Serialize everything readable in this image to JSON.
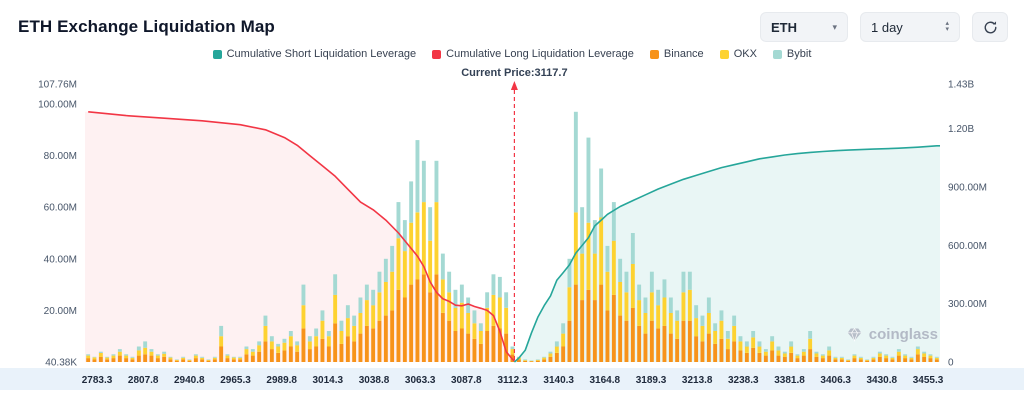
{
  "header": {
    "title": "ETH Exchange Liquidation Map",
    "controls": {
      "symbol": {
        "value": "ETH"
      },
      "interval": {
        "value": "1 day"
      }
    }
  },
  "legend": {
    "items": [
      {
        "label": "Cumulative Short Liquidation Leverage",
        "color": "#26a69a"
      },
      {
        "label": "Cumulative Long Liquidation Leverage",
        "color": "#f23645"
      },
      {
        "label": "Binance",
        "color": "#f7931a"
      },
      {
        "label": "OKX",
        "color": "#fdd231"
      },
      {
        "label": "Bybit",
        "color": "#a4d9d3"
      }
    ]
  },
  "watermark": {
    "text": "coinglass"
  },
  "chart_data": {
    "type": "bar",
    "subtype": "stacked liquidation bars + cumulative long/short leverage lines",
    "title": "ETH Exchange Liquidation Map",
    "current_price": {
      "label": "Current Price:3117.7",
      "value": 3117.7,
      "bar_index": 67.3
    },
    "x_tick_labels": [
      "2783.3",
      "2807.8",
      "2940.8",
      "2965.3",
      "2989.8",
      "3014.3",
      "3038.8",
      "3063.3",
      "3087.8",
      "3112.3",
      "3140.3",
      "3164.8",
      "3189.3",
      "3213.8",
      "3238.3",
      "3381.8",
      "3406.3",
      "3430.8",
      "3455.3"
    ],
    "left_axis": {
      "max_m": 107.76,
      "ticks": [
        {
          "label": "107.76M",
          "value_m": 107.76
        },
        {
          "label": "100.00M",
          "value_m": 100
        },
        {
          "label": "80.00M",
          "value_m": 80
        },
        {
          "label": "60.00M",
          "value_m": 60
        },
        {
          "label": "40.00M",
          "value_m": 40
        },
        {
          "label": "20.00M",
          "value_m": 20
        },
        {
          "label": "40.38K",
          "value_m": 0.04038
        }
      ]
    },
    "right_axis": {
      "max_m": 1430,
      "ticks": [
        {
          "label": "1.43B",
          "value_m": 1430
        },
        {
          "label": "1.20B",
          "value_m": 1200
        },
        {
          "label": "900.00M",
          "value_m": 900
        },
        {
          "label": "600.00M",
          "value_m": 600
        },
        {
          "label": "300.00M",
          "value_m": 300
        },
        {
          "label": "0",
          "value_m": 0
        }
      ]
    },
    "stack_series": [
      "Binance",
      "OKX",
      "Bybit"
    ],
    "bars_m": [
      [
        1.5,
        1,
        0.5
      ],
      [
        1,
        0.8,
        0.2
      ],
      [
        2,
        1.5,
        0.5
      ],
      [
        1,
        0.7,
        0.3
      ],
      [
        1.5,
        1,
        0.5
      ],
      [
        2.5,
        1.5,
        1
      ],
      [
        1.5,
        1,
        0.5
      ],
      [
        1,
        0.6,
        0.4
      ],
      [
        2.5,
        2,
        1.5
      ],
      [
        3,
        2.5,
        2.5
      ],
      [
        2.5,
        1.5,
        1
      ],
      [
        1.5,
        1,
        0.5
      ],
      [
        2,
        1.2,
        0.8
      ],
      [
        1,
        0.7,
        0.3
      ],
      [
        0.5,
        0.3,
        0.2
      ],
      [
        1,
        0.6,
        0.4
      ],
      [
        0.5,
        0.3,
        0.2
      ],
      [
        1.5,
        1,
        0.5
      ],
      [
        1,
        0.6,
        0.4
      ],
      [
        0.5,
        0.3,
        0.2
      ],
      [
        1,
        0.6,
        0.4
      ],
      [
        6,
        4,
        4
      ],
      [
        1.5,
        1,
        0.5
      ],
      [
        1,
        0.7,
        0.3
      ],
      [
        1,
        0.6,
        0.4
      ],
      [
        3,
        2,
        1
      ],
      [
        2.5,
        1.5,
        1
      ],
      [
        4,
        2.5,
        1.5
      ],
      [
        8,
        6,
        4
      ],
      [
        5,
        3,
        2
      ],
      [
        3.5,
        2.5,
        1
      ],
      [
        4.5,
        3,
        1.5
      ],
      [
        6,
        4,
        2
      ],
      [
        4,
        2.5,
        1.5
      ],
      [
        13,
        9,
        8
      ],
      [
        5,
        3,
        2
      ],
      [
        6,
        4,
        3
      ],
      [
        9,
        7,
        4
      ],
      [
        6,
        4,
        2
      ],
      [
        15,
        11,
        8
      ],
      [
        7,
        5,
        4
      ],
      [
        10,
        7,
        5
      ],
      [
        8,
        6,
        4
      ],
      [
        11,
        8,
        6
      ],
      [
        14,
        10,
        6
      ],
      [
        13,
        9,
        6
      ],
      [
        16,
        11,
        8
      ],
      [
        18,
        13,
        9
      ],
      [
        20,
        15,
        10
      ],
      [
        28,
        20,
        14
      ],
      [
        25,
        18,
        12
      ],
      [
        30,
        24,
        16
      ],
      [
        32,
        26,
        28
      ],
      [
        34,
        28,
        16
      ],
      [
        27,
        20,
        13
      ],
      [
        34,
        28,
        16
      ],
      [
        19,
        13,
        10
      ],
      [
        16,
        11,
        8
      ],
      [
        12,
        9,
        7
      ],
      [
        13,
        10,
        7
      ],
      [
        11,
        8,
        6
      ],
      [
        9,
        6,
        5
      ],
      [
        7,
        5,
        3
      ],
      [
        12,
        9,
        6
      ],
      [
        14,
        12,
        8
      ],
      [
        13,
        12,
        8
      ],
      [
        11,
        10,
        6
      ],
      [
        3,
        2,
        1
      ],
      [
        1,
        0.7,
        0.3
      ],
      [
        0.4,
        0.3,
        0.3
      ],
      [
        0.3,
        0.2,
        0.1
      ],
      [
        0.5,
        0.3,
        0.2
      ],
      [
        1,
        0.7,
        0.3
      ],
      [
        2,
        1.3,
        0.7
      ],
      [
        3.5,
        2.5,
        2
      ],
      [
        6,
        5,
        4
      ],
      [
        16,
        13,
        11
      ],
      [
        30,
        28,
        39
      ],
      [
        24,
        18,
        18
      ],
      [
        28,
        26,
        33
      ],
      [
        24,
        18,
        13
      ],
      [
        30,
        26,
        19
      ],
      [
        20,
        15,
        10
      ],
      [
        26,
        21,
        15
      ],
      [
        18,
        13,
        9
      ],
      [
        16,
        11,
        8
      ],
      [
        21,
        17,
        12
      ],
      [
        14,
        10,
        6
      ],
      [
        11,
        8,
        6
      ],
      [
        16,
        11,
        8
      ],
      [
        13,
        9,
        6
      ],
      [
        14,
        11,
        7
      ],
      [
        11,
        8,
        6
      ],
      [
        9,
        7,
        4
      ],
      [
        16,
        11,
        8
      ],
      [
        16,
        12,
        7
      ],
      [
        10,
        7,
        5
      ],
      [
        8,
        6,
        4
      ],
      [
        11,
        8,
        6
      ],
      [
        7,
        5,
        3
      ],
      [
        9,
        7,
        4
      ],
      [
        5,
        4,
        3
      ],
      [
        8,
        6,
        4
      ],
      [
        4.5,
        3.5,
        2
      ],
      [
        3.5,
        2.5,
        2
      ],
      [
        5.5,
        4,
        2.5
      ],
      [
        3.5,
        2.5,
        2
      ],
      [
        2.5,
        1.5,
        1
      ],
      [
        4.5,
        3.5,
        2
      ],
      [
        2.5,
        2,
        1.5
      ],
      [
        2,
        1.3,
        0.7
      ],
      [
        3.5,
        2.5,
        2
      ],
      [
        1.5,
        1,
        0.5
      ],
      [
        2.5,
        1.5,
        1
      ],
      [
        5,
        4,
        3
      ],
      [
        2,
        1.3,
        0.7
      ],
      [
        1.5,
        1,
        0.5
      ],
      [
        2.5,
        2,
        1.5
      ],
      [
        1,
        0.6,
        0.4
      ],
      [
        1,
        0.6,
        0.4
      ],
      [
        0.5,
        0.3,
        0.2
      ],
      [
        1.5,
        1,
        0.5
      ],
      [
        1,
        0.6,
        0.4
      ],
      [
        0.5,
        0.3,
        0.2
      ],
      [
        1,
        0.6,
        0.4
      ],
      [
        2,
        1.3,
        0.7
      ],
      [
        1.5,
        1,
        0.5
      ],
      [
        1,
        0.6,
        0.4
      ],
      [
        2.5,
        1.5,
        1
      ],
      [
        1.5,
        1,
        0.5
      ],
      [
        1,
        0.6,
        0.4
      ],
      [
        3,
        2,
        1
      ],
      [
        2,
        1.3,
        0.7
      ],
      [
        1.5,
        1,
        0.5
      ],
      [
        1,
        0.6,
        0.4
      ]
    ],
    "long_cumulative_m": [
      [
        0,
        97
      ],
      [
        6,
        95.5
      ],
      [
        12,
        94.5
      ],
      [
        18,
        93.5
      ],
      [
        24,
        92
      ],
      [
        28,
        90
      ],
      [
        31,
        87
      ],
      [
        33,
        84
      ],
      [
        35,
        80
      ],
      [
        37,
        76
      ],
      [
        39,
        72
      ],
      [
        41,
        67
      ],
      [
        43,
        62
      ],
      [
        45,
        59
      ],
      [
        47,
        55
      ],
      [
        49,
        50
      ],
      [
        51,
        44
      ],
      [
        52,
        41
      ],
      [
        53,
        37
      ],
      [
        54,
        31
      ],
      [
        55,
        27
      ],
      [
        56,
        24.5
      ],
      [
        57,
        23.5
      ],
      [
        58,
        22
      ],
      [
        59,
        21.8
      ],
      [
        60,
        22.5
      ],
      [
        61,
        21.5
      ],
      [
        62,
        20.8
      ],
      [
        63,
        20
      ],
      [
        64,
        18
      ],
      [
        65,
        12
      ],
      [
        66,
        4
      ],
      [
        67,
        1
      ],
      [
        67.3,
        0.4
      ]
    ],
    "short_cumulative_m": [
      [
        67.3,
        0
      ],
      [
        68,
        20
      ],
      [
        69,
        60
      ],
      [
        70,
        150
      ],
      [
        71,
        230
      ],
      [
        72,
        290
      ],
      [
        73,
        340
      ],
      [
        74,
        420
      ],
      [
        75,
        460
      ],
      [
        76,
        500
      ],
      [
        77,
        560
      ],
      [
        78,
        600
      ],
      [
        79,
        640
      ],
      [
        80,
        700
      ],
      [
        81,
        730
      ],
      [
        82,
        760
      ],
      [
        84,
        800
      ],
      [
        86,
        830
      ],
      [
        88,
        860
      ],
      [
        90,
        890
      ],
      [
        92,
        915
      ],
      [
        94,
        940
      ],
      [
        96,
        960
      ],
      [
        98,
        980
      ],
      [
        100,
        1000
      ],
      [
        102,
        1015
      ],
      [
        104,
        1030
      ],
      [
        106,
        1045
      ],
      [
        108,
        1055
      ],
      [
        110,
        1065
      ],
      [
        112,
        1072
      ],
      [
        114,
        1078
      ],
      [
        116,
        1083
      ],
      [
        118,
        1087
      ],
      [
        120,
        1090
      ],
      [
        124,
        1095
      ],
      [
        128,
        1100
      ],
      [
        131,
        1105
      ],
      [
        134,
        1112
      ]
    ],
    "colors": {
      "binance": "#f7931a",
      "okx": "#fdd231",
      "bybit": "#a4d9d3",
      "long": "#f23645",
      "short": "#26a69a",
      "long_fill": "rgba(242,54,69,0.07)",
      "short_fill": "rgba(38,166,154,0.10)"
    }
  }
}
